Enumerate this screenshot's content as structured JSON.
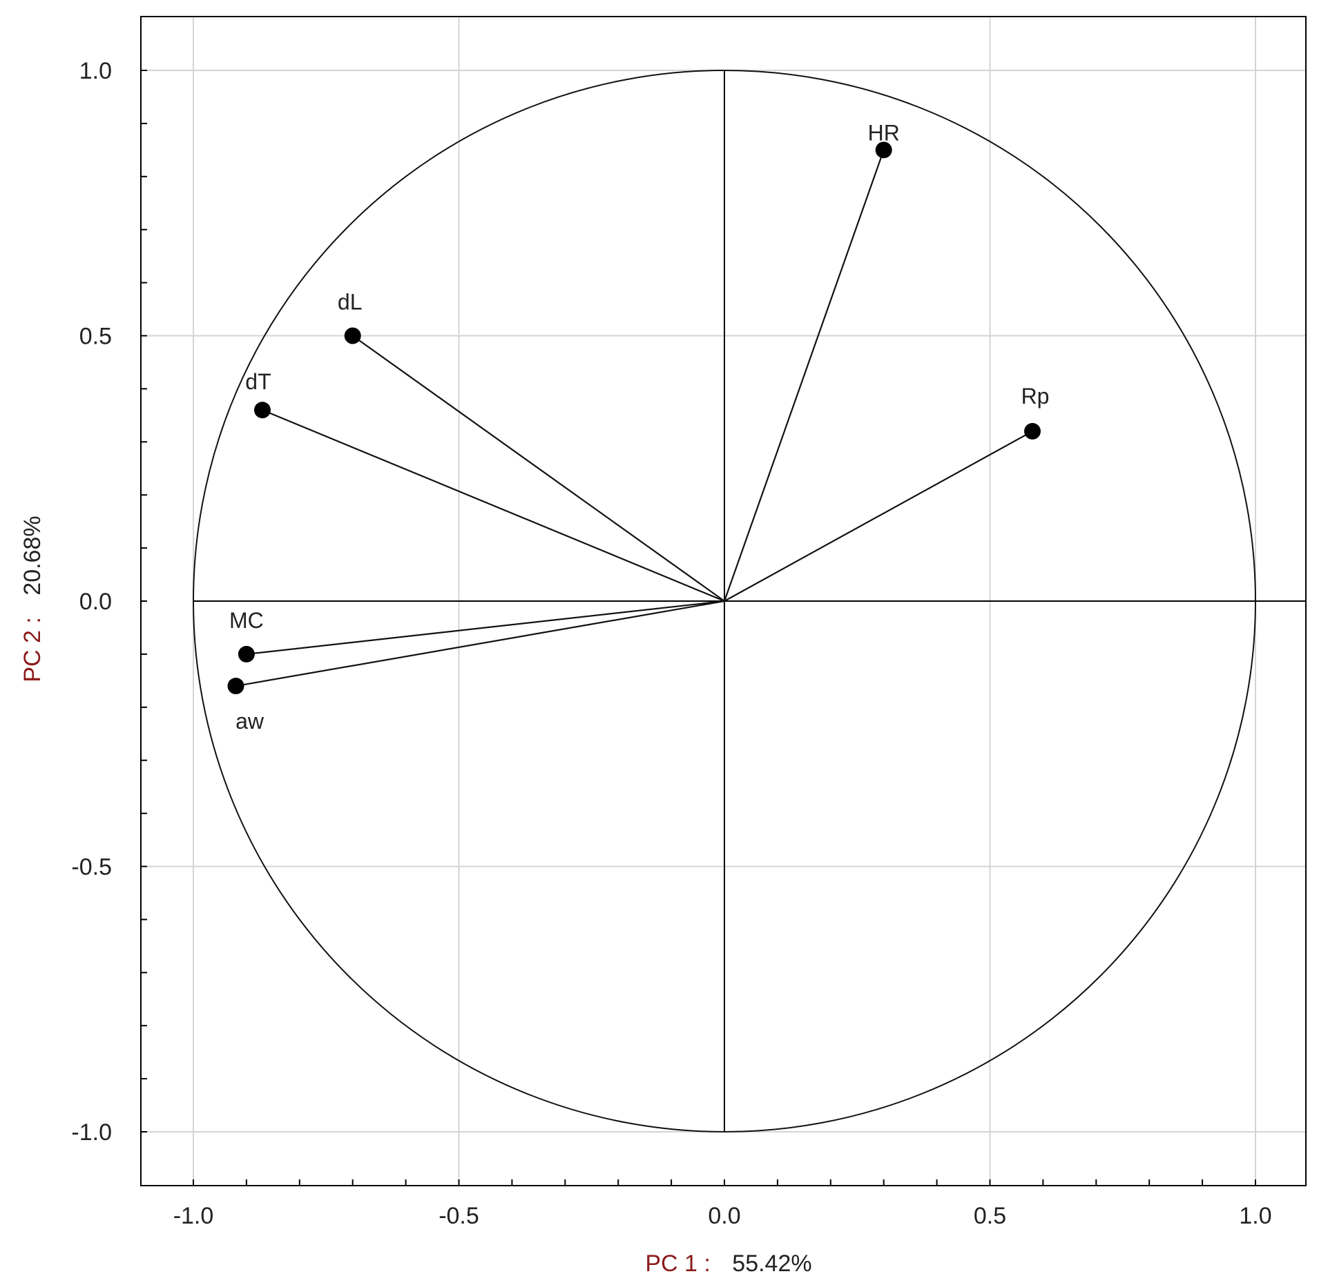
{
  "chart_data": {
    "type": "scatter",
    "subtype": "pca-correlation-circle",
    "title": "",
    "xlabel": "PC 1 :",
    "xlabel_value": "55.42%",
    "ylabel": "PC 2 :",
    "ylabel_value": "20.68%",
    "xlim": [
      -1.1,
      1.1
    ],
    "ylim": [
      -1.1,
      1.1
    ],
    "x_ticks": [
      "-1.0",
      "-0.5",
      "0.0",
      "0.5",
      "1.0"
    ],
    "x_tick_values": [
      -1.0,
      -0.5,
      0.0,
      0.5,
      1.0
    ],
    "y_ticks": [
      "1.0",
      "0.5",
      "0.0",
      "-0.5",
      "-1.0"
    ],
    "y_tick_values": [
      1.0,
      0.5,
      0.0,
      -0.5,
      -1.0
    ],
    "grid": true,
    "unit_circle": true,
    "vectors_from_origin": true,
    "points": [
      {
        "label": "HR",
        "x": 0.3,
        "y": 0.85
      },
      {
        "label": "Rp",
        "x": 0.58,
        "y": 0.32
      },
      {
        "label": "dL",
        "x": -0.7,
        "y": 0.5
      },
      {
        "label": "dT",
        "x": -0.87,
        "y": 0.36
      },
      {
        "label": "MC",
        "x": -0.9,
        "y": -0.1
      },
      {
        "label": "aw",
        "x": -0.92,
        "y": -0.16
      }
    ],
    "colors": {
      "axis_title_prefix": "#8b1a1a",
      "axis_title_value": "#222222",
      "marker": "#000000",
      "vector": "#111111",
      "grid": "#d4d4d4",
      "frame": "#000000"
    }
  }
}
